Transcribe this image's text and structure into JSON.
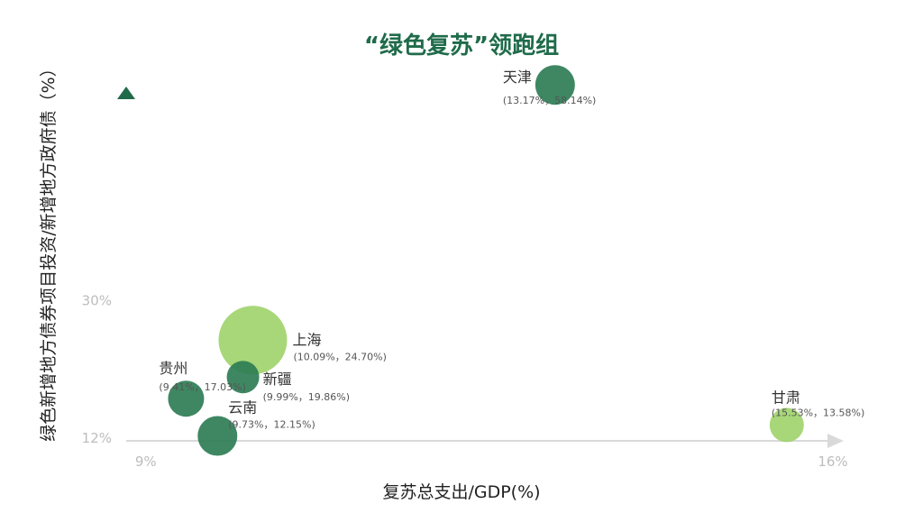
{
  "chart_data": {
    "type": "scatter",
    "title": "“绿色复苏”领跑组",
    "xlabel": "复苏总支出/GDP(%)",
    "ylabel": "绿色新增地方债券项目投资/新增地方政府债（%）",
    "x_ticks": [
      {
        "value": 9,
        "label": "9%"
      },
      {
        "value": 16,
        "label": "16%"
      }
    ],
    "y_ticks": [
      {
        "value": 12,
        "label": "12%"
      },
      {
        "value": 30,
        "label": "30%"
      }
    ],
    "xlim": [
      8.8,
      16.0
    ],
    "ylim": [
      11.5,
      61.0
    ],
    "grid": false,
    "colors": {
      "dark_green": "#2e7d55",
      "light_green": "#9fd36a",
      "axis": "#d9d9d9",
      "arrow": "#2e7d55"
    },
    "points": [
      {
        "name": "天津",
        "x": 13.17,
        "y": 58.14,
        "label": "(13.17%，58.14%)",
        "color": "dark_green",
        "size": 22
      },
      {
        "name": "上海",
        "x": 10.09,
        "y": 24.7,
        "label": "(10.09%，24.70%)",
        "color": "light_green",
        "size": 38
      },
      {
        "name": "新疆",
        "x": 9.99,
        "y": 19.86,
        "label": "(9.99%，19.86%)",
        "color": "dark_green",
        "size": 18
      },
      {
        "name": "贵州",
        "x": 9.41,
        "y": 17.03,
        "label": "(9.41%，17.03%)",
        "color": "dark_green",
        "size": 20
      },
      {
        "name": "云南",
        "x": 9.73,
        "y": 12.15,
        "label": "(9.73%，12.15%)",
        "color": "dark_green",
        "size": 22
      },
      {
        "name": "甘肃",
        "x": 15.53,
        "y": 13.58,
        "label": "(15.53%，13.58%)",
        "color": "light_green",
        "size": 19
      }
    ]
  }
}
